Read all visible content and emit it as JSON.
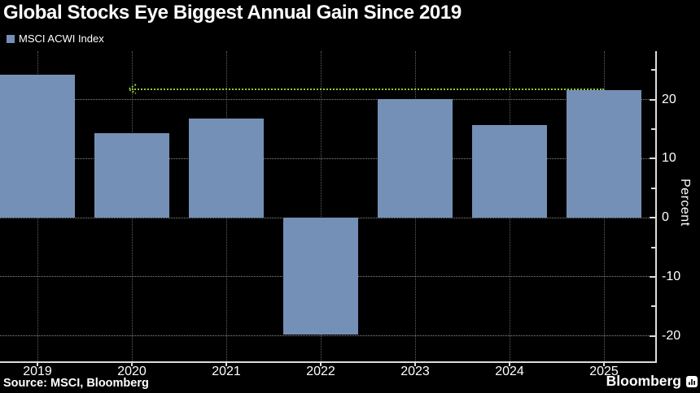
{
  "header": {
    "title": "Global Stocks Eye Biggest Annual Gain Since 2019"
  },
  "legend": {
    "items": [
      {
        "label": "MSCI ACWI Index",
        "swatch_color": "#7590b6"
      }
    ]
  },
  "chart_data": {
    "type": "bar",
    "title": "Global Stocks Eye Biggest Annual Gain Since 2019",
    "categories": [
      "2019",
      "2020",
      "2021",
      "2022",
      "2023",
      "2024",
      "2025"
    ],
    "series": [
      {
        "name": "MSCI ACWI Index",
        "values": [
          24.2,
          14.3,
          16.8,
          -19.8,
          20.1,
          15.7,
          21.6
        ]
      }
    ],
    "xlabel": "",
    "ylabel": "Percent",
    "ylim": [
      -24.3,
      28.2
    ],
    "y_ticks_major": [
      20,
      10,
      0,
      -10,
      -20
    ],
    "y_tick_labels": [
      "20",
      "10",
      "0",
      "-10",
      "-20"
    ],
    "y_ticks_minor": [
      25,
      15,
      5,
      -5,
      -15
    ],
    "grid": "dotted horizontal at major y ticks; dotted vertical at category centers",
    "axis_side": "right",
    "legend_position": "top-left",
    "background_color": "#000000",
    "bar_color": "#7590b6",
    "reference_line": {
      "value": 21.6,
      "from_category": "2020",
      "to_category": "2025",
      "color": "#8fc93a",
      "style": "dotted",
      "marker": "arrowhead-left"
    }
  },
  "footer": {
    "source": "Source: MSCI, Bloomberg",
    "brand": "Bloomberg",
    "brand_icon": "bar-chart-icon"
  }
}
